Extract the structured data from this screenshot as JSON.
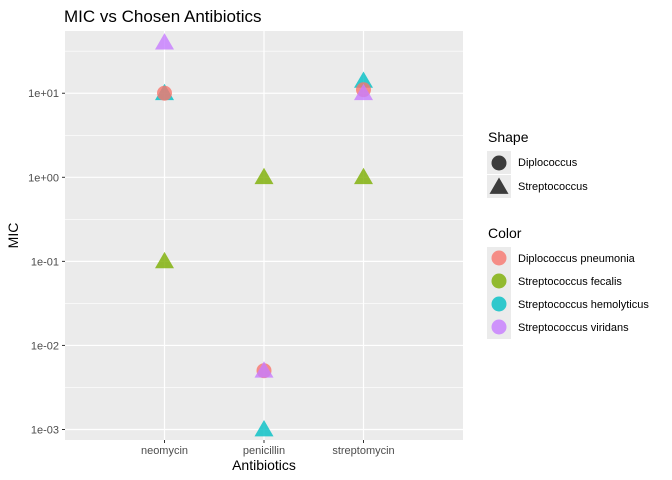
{
  "chart_data": {
    "type": "scatter",
    "title": "MIC vs Chosen Antibiotics",
    "xlabel": "Antibiotics",
    "ylabel": "MIC",
    "categories": [
      "neomycin",
      "penicillin",
      "streptomycin"
    ],
    "y_scale": "log10",
    "ylim": [
      0.00075,
      55
    ],
    "y_ticks": [
      0.001,
      0.01,
      0.1,
      1,
      10
    ],
    "y_tick_labels": [
      "1e-03",
      "1e-02",
      "1e-01",
      "1e+00",
      "1e+01"
    ],
    "grid": true,
    "legend_position": "right",
    "shape_legend": {
      "title": "Shape",
      "items": [
        {
          "label": "Diplococcus",
          "shape": "circle"
        },
        {
          "label": "Streptococcus",
          "shape": "triangle"
        }
      ]
    },
    "color_legend": {
      "title": "Color",
      "items": [
        {
          "label": "Diplococcus pneumonia",
          "color": "#F8766D"
        },
        {
          "label": "Streptococcus fecalis",
          "color": "#7CAE00"
        },
        {
          "label": "Streptococcus hemolyticus",
          "color": "#00BFC4"
        },
        {
          "label": "Streptococcus viridans",
          "color": "#C77CFF"
        }
      ]
    },
    "points": [
      {
        "x": "neomycin",
        "y": 40,
        "color": "Streptococcus viridans",
        "shape": "Streptococcus"
      },
      {
        "x": "neomycin",
        "y": 10,
        "color": "Streptococcus hemolyticus",
        "shape": "Streptococcus"
      },
      {
        "x": "neomycin",
        "y": 10,
        "color": "Diplococcus pneumonia",
        "shape": "Diplococcus"
      },
      {
        "x": "neomycin",
        "y": 0.1,
        "color": "Streptococcus fecalis",
        "shape": "Streptococcus"
      },
      {
        "x": "penicillin",
        "y": 1,
        "color": "Streptococcus fecalis",
        "shape": "Streptococcus"
      },
      {
        "x": "penicillin",
        "y": 0.005,
        "color": "Diplococcus pneumonia",
        "shape": "Diplococcus"
      },
      {
        "x": "penicillin",
        "y": 0.005,
        "color": "Streptococcus viridans",
        "shape": "Streptococcus"
      },
      {
        "x": "penicillin",
        "y": 0.001,
        "color": "Streptococcus hemolyticus",
        "shape": "Streptococcus"
      },
      {
        "x": "streptomycin",
        "y": 14,
        "color": "Streptococcus hemolyticus",
        "shape": "Streptococcus"
      },
      {
        "x": "streptomycin",
        "y": 11,
        "color": "Diplococcus pneumonia",
        "shape": "Diplococcus"
      },
      {
        "x": "streptomycin",
        "y": 10,
        "color": "Streptococcus viridans",
        "shape": "Streptococcus"
      },
      {
        "x": "streptomycin",
        "y": 1,
        "color": "Streptococcus fecalis",
        "shape": "Streptococcus"
      }
    ]
  }
}
